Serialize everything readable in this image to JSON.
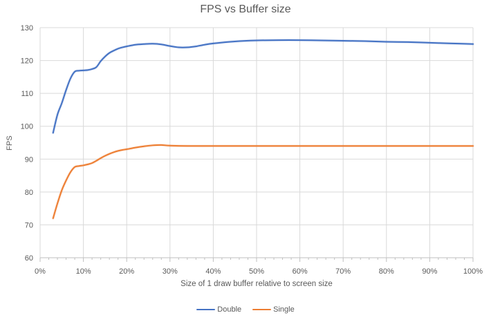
{
  "chart_data": {
    "type": "line",
    "title": "FPS vs Buffer size",
    "xlabel": "Size of 1 draw buffer relative to screen size",
    "ylabel": "FPS",
    "xlim": [
      0,
      100
    ],
    "ylim": [
      60,
      130
    ],
    "x_unit": "%",
    "x_tick_labels": [
      "0%",
      "10%",
      "20%",
      "30%",
      "40%",
      "50%",
      "60%",
      "70%",
      "80%",
      "90%",
      "100%"
    ],
    "y_tick_labels": [
      "60",
      "70",
      "80",
      "90",
      "100",
      "110",
      "120",
      "130"
    ],
    "x_major_tick_step": 10,
    "x_minor_tick_step": 2,
    "grid": true,
    "line_smoothing": true,
    "markers": false,
    "legend_position": "bottom",
    "colors": {
      "grid": "#D9D9D9",
      "axis": "#BFBFBF",
      "text": "#595959",
      "background": "#FFFFFF"
    },
    "series": [
      {
        "name": "Double",
        "color": "#4472C4",
        "x": [
          3,
          4,
          5,
          6,
          7,
          8,
          9,
          10,
          11,
          12,
          13,
          14,
          15,
          16,
          17,
          18,
          19,
          20,
          22,
          24,
          26,
          28,
          30,
          32,
          34,
          36,
          38,
          40,
          45,
          50,
          55,
          60,
          65,
          70,
          75,
          80,
          85,
          90,
          95,
          100
        ],
        "y": [
          98,
          103.5,
          107,
          111,
          114.5,
          116.6,
          116.9,
          117,
          117.1,
          117.4,
          118,
          119.8,
          121.2,
          122.3,
          123,
          123.6,
          124,
          124.3,
          124.8,
          125,
          125.1,
          124.9,
          124.4,
          124,
          124,
          124.3,
          124.8,
          125.2,
          125.8,
          126.1,
          126.2,
          126.2,
          126.1,
          126,
          125.9,
          125.7,
          125.6,
          125.4,
          125.2,
          125
        ]
      },
      {
        "name": "Single",
        "color": "#ED7D31",
        "x": [
          3,
          4,
          5,
          6,
          7,
          8,
          9,
          10,
          11,
          12,
          13,
          14,
          15,
          16,
          17,
          18,
          19,
          20,
          22,
          24,
          26,
          28,
          30,
          35,
          40,
          45,
          50,
          55,
          60,
          65,
          70,
          75,
          80,
          85,
          90,
          95,
          100
        ],
        "y": [
          72,
          76.5,
          80.5,
          83.5,
          86,
          87.6,
          87.9,
          88.1,
          88.4,
          88.8,
          89.5,
          90.3,
          91,
          91.6,
          92.1,
          92.5,
          92.8,
          93,
          93.5,
          93.9,
          94.2,
          94.3,
          94.1,
          94,
          94,
          94,
          94,
          94,
          94,
          94,
          94,
          94,
          94,
          94,
          94,
          94,
          94
        ]
      }
    ]
  }
}
